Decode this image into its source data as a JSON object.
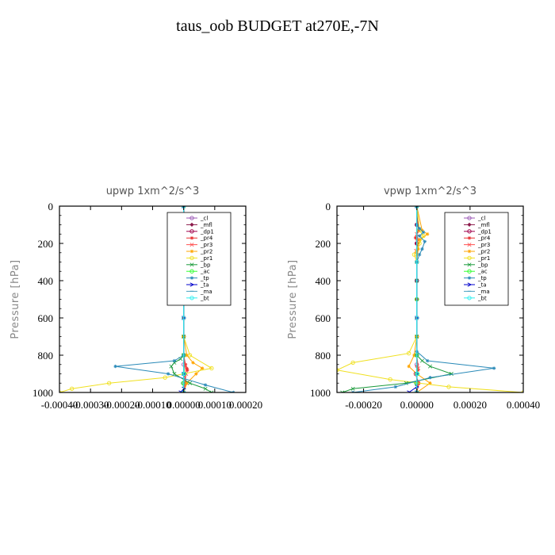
{
  "title": "taus_oob  BUDGET at270E,-7N",
  "chart_data": [
    {
      "type": "line",
      "title": "upwp   1xm^2/s^3",
      "ylabel": "Pressure [hPa]",
      "xlim": [
        -0.0004,
        0.0002
      ],
      "ylim": [
        1000,
        0
      ],
      "xticks": [
        -0.0004,
        -0.0003,
        -0.0002,
        -0.0001,
        0.0,
        0.0001,
        0.0002
      ],
      "xtick_labels": [
        "-0.00040",
        "-0.00030",
        "-0.00020",
        "-0.00010",
        "0.00000",
        "0.00010",
        "0.00020"
      ],
      "yticks": [
        0,
        200,
        400,
        600,
        800,
        1000
      ],
      "ytick_labels": [
        "0",
        "200",
        "400",
        "600",
        "800",
        "1000"
      ],
      "legend_position": "top-right",
      "series": [
        {
          "name": "_cl",
          "color": "#9b59b6",
          "marker": "circle",
          "x": [
            0,
            0,
            0,
            0,
            0,
            0,
            0,
            0,
            0,
            0,
            0,
            0,
            0
          ],
          "y": [
            0,
            100,
            200,
            300,
            400,
            500,
            600,
            700,
            800,
            850,
            900,
            950,
            1000
          ]
        },
        {
          "name": "_mfl",
          "color": "#8b1a4a",
          "marker": "diamond",
          "x": [
            0,
            0,
            0,
            0,
            0,
            0,
            0,
            0,
            0,
            0,
            0
          ],
          "y": [
            0,
            100,
            200,
            300,
            400,
            500,
            600,
            700,
            800,
            900,
            1000
          ]
        },
        {
          "name": "_dp1",
          "color": "#a0004a",
          "marker": "circle",
          "x": [
            0,
            0,
            0,
            0,
            0,
            0,
            0,
            0,
            0,
            0,
            0
          ],
          "y": [
            0,
            100,
            200,
            300,
            400,
            500,
            600,
            700,
            800,
            900,
            1000
          ]
        },
        {
          "name": "_pr4",
          "color": "#e83030",
          "marker": "star",
          "x": [
            0,
            5e-06,
            -6e-06,
            6e-06,
            0,
            0,
            0,
            0,
            6e-06,
            1e-05,
            1.2e-05,
            2e-06,
            8e-06,
            0
          ],
          "y": [
            0,
            120,
            160,
            200,
            300,
            500,
            700,
            800,
            850,
            870,
            880,
            900,
            950,
            1000
          ]
        },
        {
          "name": "_pr3",
          "color": "#ff5050",
          "marker": "cross",
          "x": [
            0,
            0,
            4e-06,
            -4e-06,
            0,
            0,
            0,
            5e-06,
            8e-06,
            4e-06,
            0
          ],
          "y": [
            0,
            150,
            200,
            250,
            300,
            600,
            800,
            860,
            900,
            950,
            1000
          ]
        },
        {
          "name": "_pr2",
          "color": "#ffa500",
          "marker": "star",
          "x": [
            0,
            0,
            5e-06,
            2e-06,
            0,
            0,
            1e-05,
            3e-05,
            6e-05,
            4e-05,
            1e-05,
            0
          ],
          "y": [
            0,
            150,
            200,
            250,
            300,
            700,
            800,
            840,
            870,
            900,
            950,
            1000
          ]
        },
        {
          "name": "_pr1",
          "color": "#f0e020",
          "marker": "circle",
          "x": [
            0,
            0,
            -5e-06,
            5e-06,
            0,
            0,
            2e-05,
            9e-05,
            -6e-05,
            -0.00024,
            -0.00036,
            -0.0004
          ],
          "y": [
            0,
            200,
            250,
            300,
            350,
            700,
            800,
            870,
            920,
            950,
            980,
            1000
          ]
        },
        {
          "name": "_bp",
          "color": "#1a9a3a",
          "marker": "cross",
          "x": [
            0,
            0,
            0,
            0,
            -1e-05,
            -3e-05,
            -4e-05,
            -3e-05,
            2e-05,
            7e-05,
            9e-05
          ],
          "y": [
            0,
            400,
            700,
            800,
            820,
            840,
            860,
            900,
            950,
            980,
            1000
          ]
        },
        {
          "name": "_ac",
          "color": "#30ff30",
          "marker": "circle",
          "x": [
            0,
            0,
            0,
            2e-06,
            -2e-06,
            0
          ],
          "y": [
            0,
            500,
            800,
            900,
            950,
            1000
          ]
        },
        {
          "name": "_tp",
          "color": "#2a8ab8",
          "marker": "star",
          "x": [
            0,
            0,
            -1e-05,
            -2.5e-05,
            -1e-05,
            -2e-05,
            -1e-05,
            0,
            0,
            -3e-05,
            -0.00022,
            -5e-05,
            7e-05,
            0.00016
          ],
          "y": [
            0,
            100,
            130,
            170,
            200,
            230,
            270,
            300,
            800,
            830,
            860,
            900,
            960,
            1000
          ]
        },
        {
          "name": "_ta",
          "color": "#0000cc",
          "marker": "arrow",
          "x": [
            0,
            0,
            0,
            0,
            -1e-05,
            0
          ],
          "y": [
            0,
            600,
            900,
            980,
            1000,
            1000
          ]
        },
        {
          "name": "_ma",
          "color": "#4aa0c0",
          "marker": "dash",
          "x": [
            0,
            0,
            0,
            0
          ],
          "y": [
            0,
            400,
            800,
            1000
          ]
        },
        {
          "name": "_bt",
          "color": "#30f0f0",
          "marker": "circle",
          "x": [
            0,
            0,
            0,
            0,
            0
          ],
          "y": [
            0,
            300,
            600,
            900,
            1000
          ]
        }
      ]
    },
    {
      "type": "line",
      "title": "vpwp   1xm^2/s^3",
      "ylabel": "Pressure [hPa]",
      "xlim": [
        -0.0003,
        0.0004
      ],
      "ylim": [
        1000,
        0
      ],
      "xticks": [
        -0.0002,
        0.0,
        0.0002,
        0.0004
      ],
      "xtick_labels": [
        "-0.00020",
        "0.00000",
        "0.00020",
        "0.00040"
      ],
      "yticks": [
        0,
        200,
        400,
        600,
        800,
        1000
      ],
      "ytick_labels": [
        "0",
        "200",
        "400",
        "600",
        "800",
        "1000"
      ],
      "legend_position": "top-right",
      "series": [
        {
          "name": "_cl",
          "color": "#9b59b6",
          "marker": "circle",
          "x": [
            0,
            0,
            0,
            0,
            0,
            0,
            0,
            0,
            0,
            0,
            0,
            0,
            0
          ],
          "y": [
            0,
            100,
            200,
            300,
            400,
            500,
            600,
            700,
            800,
            850,
            900,
            950,
            1000
          ]
        },
        {
          "name": "_mfl",
          "color": "#8b1a4a",
          "marker": "diamond",
          "x": [
            0,
            0,
            0,
            0,
            0,
            0,
            0,
            0,
            0,
            0,
            0
          ],
          "y": [
            0,
            100,
            200,
            300,
            400,
            500,
            600,
            700,
            800,
            900,
            1000
          ]
        },
        {
          "name": "_dp1",
          "color": "#a0004a",
          "marker": "circle",
          "x": [
            0,
            0,
            0,
            0,
            0,
            0,
            0,
            0,
            0,
            0,
            0
          ],
          "y": [
            0,
            100,
            200,
            300,
            400,
            500,
            600,
            700,
            800,
            900,
            1000
          ]
        },
        {
          "name": "_pr4",
          "color": "#e83030",
          "marker": "star",
          "x": [
            0,
            6e-06,
            -5e-06,
            4e-06,
            0,
            0,
            0,
            0,
            4e-06,
            -6e-06,
            8e-06,
            0
          ],
          "y": [
            0,
            130,
            170,
            210,
            300,
            500,
            700,
            860,
            880,
            900,
            950,
            1000
          ]
        },
        {
          "name": "_pr3",
          "color": "#ff5050",
          "marker": "cross",
          "x": [
            0,
            0,
            5e-06,
            -3e-06,
            0,
            0,
            0,
            6e-06,
            -4e-06,
            5e-06,
            0
          ],
          "y": [
            0,
            150,
            180,
            240,
            300,
            600,
            800,
            870,
            900,
            950,
            1000
          ]
        },
        {
          "name": "_pr2",
          "color": "#ffa500",
          "marker": "star",
          "x": [
            0,
            2e-05,
            4e-05,
            1e-05,
            5e-06,
            0,
            0,
            -1e-05,
            -3e-05,
            0,
            5e-05,
            0
          ],
          "y": [
            0,
            130,
            150,
            180,
            230,
            300,
            700,
            800,
            860,
            900,
            950,
            1000
          ]
        },
        {
          "name": "_pr1",
          "color": "#f0e020",
          "marker": "circle",
          "x": [
            0,
            1e-05,
            2.5e-05,
            1e-05,
            -1e-05,
            0,
            0,
            -3e-05,
            -0.00024,
            -0.0003,
            -0.0001,
            0.00012,
            0.0004
          ],
          "y": [
            0,
            130,
            160,
            200,
            260,
            300,
            700,
            790,
            840,
            880,
            930,
            970,
            1000
          ]
        },
        {
          "name": "_bp",
          "color": "#1a9a3a",
          "marker": "cross",
          "x": [
            0,
            0,
            0,
            0,
            2e-05,
            5e-05,
            0.00013,
            -4e-05,
            -0.00024,
            -0.00028
          ],
          "y": [
            0,
            400,
            700,
            800,
            830,
            860,
            900,
            950,
            980,
            1000
          ]
        },
        {
          "name": "_ac",
          "color": "#30ff30",
          "marker": "circle",
          "x": [
            0,
            0,
            0,
            2e-06,
            -2e-06,
            0
          ],
          "y": [
            0,
            500,
            800,
            900,
            950,
            1000
          ]
        },
        {
          "name": "_tp",
          "color": "#2a8ab8",
          "marker": "star",
          "x": [
            0,
            0,
            1e-05,
            2.5e-05,
            1e-05,
            3e-05,
            2e-05,
            1e-05,
            0,
            0,
            4e-05,
            0.00029,
            5e-05,
            -8e-05,
            -0.00024
          ],
          "y": [
            0,
            100,
            120,
            140,
            160,
            190,
            230,
            260,
            300,
            780,
            830,
            870,
            920,
            970,
            1000
          ]
        },
        {
          "name": "_ta",
          "color": "#0000cc",
          "marker": "arrow",
          "x": [
            0,
            0,
            0,
            0,
            -3e-05,
            0
          ],
          "y": [
            0,
            600,
            900,
            970,
            1000,
            1000
          ]
        },
        {
          "name": "_ma",
          "color": "#4aa0c0",
          "marker": "dash",
          "x": [
            0,
            0,
            0,
            0
          ],
          "y": [
            0,
            400,
            800,
            1000
          ]
        },
        {
          "name": "_bt",
          "color": "#30f0f0",
          "marker": "circle",
          "x": [
            0,
            0,
            0,
            0,
            0
          ],
          "y": [
            0,
            300,
            600,
            900,
            1000
          ]
        }
      ]
    }
  ]
}
